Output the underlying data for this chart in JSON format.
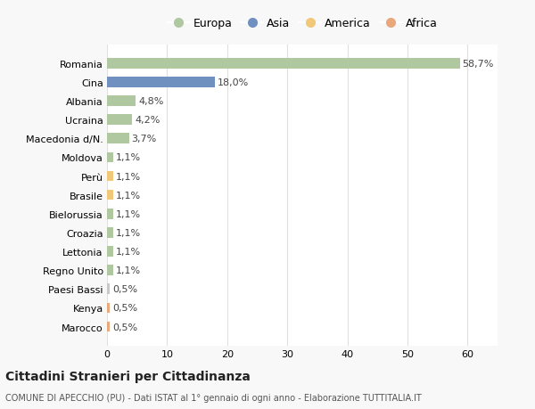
{
  "categories": [
    "Marocco",
    "Kenya",
    "Paesi Bassi",
    "Regno Unito",
    "Lettonia",
    "Croazia",
    "Bielorussia",
    "Brasile",
    "Perù",
    "Moldova",
    "Macedonia d/N.",
    "Ucraina",
    "Albania",
    "Cina",
    "Romania"
  ],
  "values": [
    0.5,
    0.5,
    0.5,
    1.1,
    1.1,
    1.1,
    1.1,
    1.1,
    1.1,
    1.1,
    3.7,
    4.2,
    4.8,
    18.0,
    58.7
  ],
  "colors": [
    "#e8a87c",
    "#e8a87c",
    "#c8c8c8",
    "#b0c8a0",
    "#b0c8a0",
    "#b0c8a0",
    "#b0c8a0",
    "#f0c878",
    "#f0c878",
    "#b0c8a0",
    "#b0c8a0",
    "#b0c8a0",
    "#b0c8a0",
    "#7090c0",
    "#b0c8a0"
  ],
  "labels": [
    "0,5%",
    "0,5%",
    "0,5%",
    "1,1%",
    "1,1%",
    "1,1%",
    "1,1%",
    "1,1%",
    "1,1%",
    "1,1%",
    "3,7%",
    "4,2%",
    "4,8%",
    "18,0%",
    "58,7%"
  ],
  "legend": [
    {
      "label": "Europa",
      "color": "#b0c8a0"
    },
    {
      "label": "Asia",
      "color": "#7090c0"
    },
    {
      "label": "America",
      "color": "#f0c878"
    },
    {
      "label": "Africa",
      "color": "#e8a87c"
    }
  ],
  "title": "Cittadini Stranieri per Cittadinanza",
  "subtitle": "COMUNE DI APECCHIO (PU) - Dati ISTAT al 1° gennaio di ogni anno - Elaborazione TUTTITALIA.IT",
  "xlim": [
    0,
    65
  ],
  "xticks": [
    0,
    10,
    20,
    30,
    40,
    50,
    60
  ],
  "background_color": "#f8f8f8",
  "plot_bg_color": "#ffffff",
  "grid_color": "#e0e0e0",
  "label_fontsize": 8,
  "tick_fontsize": 8,
  "bar_height": 0.55
}
